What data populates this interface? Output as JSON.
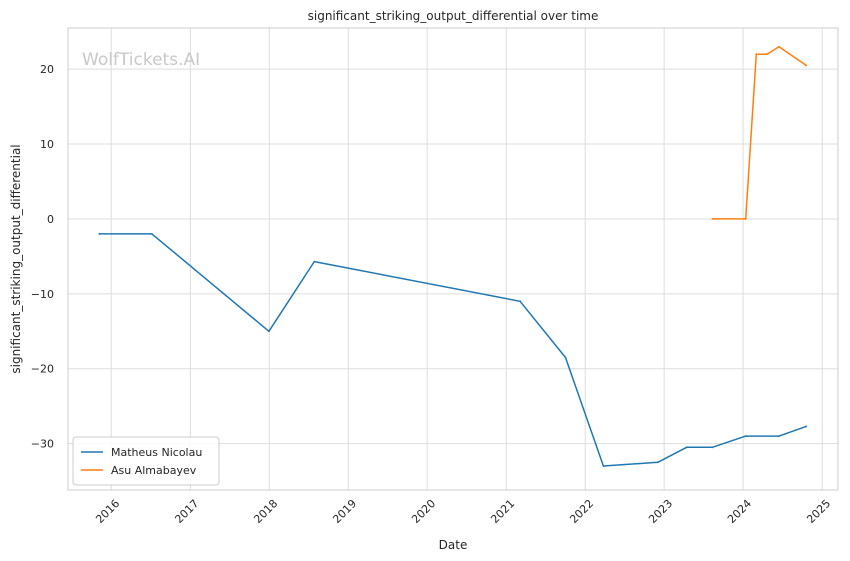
{
  "chart_data": {
    "type": "line",
    "title": "significant_striking_output_differential over time",
    "xlabel": "Date",
    "ylabel": "significant_striking_output_differential",
    "watermark": "WolfTickets.AI",
    "x_ticks": [
      "2016",
      "2017",
      "2018",
      "2019",
      "2020",
      "2021",
      "2022",
      "2023",
      "2024",
      "2025"
    ],
    "y_ticks": [
      20,
      10,
      0,
      -10,
      -20,
      -30
    ],
    "y_tick_labels": [
      "20",
      "10",
      "0",
      "−10",
      "−20",
      "−30"
    ],
    "xlim": [
      "2015-06-15",
      "2025-03-15"
    ],
    "ylim": [
      -36.2,
      25.5
    ],
    "grid": true,
    "legend_position": "lower-left",
    "series": [
      {
        "name": "Matheus Nicolau",
        "color": "#1f77b4",
        "points": [
          {
            "x": "2015-11-07",
            "y": -2
          },
          {
            "x": "2016-07-07",
            "y": -2
          },
          {
            "x": "2017-12-30",
            "y": -15
          },
          {
            "x": "2018-07-28",
            "y": -5.7
          },
          {
            "x": "2021-03-06",
            "y": -11
          },
          {
            "x": "2021-10-02",
            "y": -18.5
          },
          {
            "x": "2022-03-26",
            "y": -33
          },
          {
            "x": "2022-12-03",
            "y": -32.5
          },
          {
            "x": "2023-04-15",
            "y": -30.5
          },
          {
            "x": "2023-08-12",
            "y": -30.5
          },
          {
            "x": "2024-01-13",
            "y": -29
          },
          {
            "x": "2024-06-15",
            "y": -29
          },
          {
            "x": "2024-10-19",
            "y": -27.7
          }
        ]
      },
      {
        "name": "Asu Almabayev",
        "color": "#ff7f0e",
        "points": [
          {
            "x": "2023-08-12",
            "y": 0
          },
          {
            "x": "2024-01-13",
            "y": 0
          },
          {
            "x": "2024-03-02",
            "y": 22
          },
          {
            "x": "2024-04-20",
            "y": 22
          },
          {
            "x": "2024-06-15",
            "y": 23
          },
          {
            "x": "2024-10-19",
            "y": 20.5
          }
        ]
      }
    ]
  }
}
